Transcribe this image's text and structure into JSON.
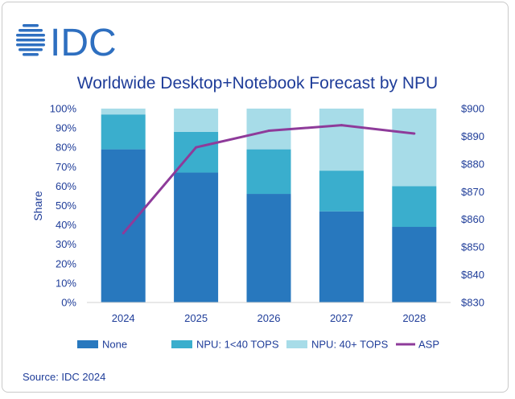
{
  "header": {
    "logo_text": "IDC"
  },
  "colors": {
    "none": "#2878be",
    "npu_low": "#3aaecd",
    "npu_high": "#a7dce8",
    "asp": "#8e3b9a",
    "text": "#1f3d99",
    "logo": "#2e6fc0"
  },
  "chart_data": {
    "type": "bar",
    "stacked": true,
    "title": "Worldwide Desktop+Notebook Forecast by NPU",
    "categories": [
      "2024",
      "2025",
      "2026",
      "2027",
      "2028"
    ],
    "ylabel": "Share",
    "ylim": [
      0,
      100
    ],
    "y_ticks": [
      "0%",
      "10%",
      "20%",
      "30%",
      "40%",
      "50%",
      "60%",
      "70%",
      "80%",
      "90%",
      "100%"
    ],
    "y2lim": [
      830,
      900
    ],
    "y2_ticks": [
      "$830",
      "$840",
      "$850",
      "$860",
      "$870",
      "$880",
      "$890",
      "$900"
    ],
    "series": [
      {
        "name": "None",
        "key": "none",
        "values": [
          79,
          67,
          56,
          47,
          39
        ]
      },
      {
        "name": "NPU: 1<40 TOPS",
        "key": "npu_low",
        "values": [
          18,
          21,
          23,
          21,
          21
        ]
      },
      {
        "name": "NPU: 40+ TOPS",
        "key": "npu_high",
        "values": [
          3,
          12,
          21,
          32,
          40
        ]
      }
    ],
    "line": {
      "name": "ASP",
      "key": "asp",
      "axis": "right",
      "values": [
        855,
        886,
        892,
        894,
        891
      ]
    },
    "legend_position": "bottom"
  },
  "footer": {
    "source": "Source: IDC 2024"
  }
}
